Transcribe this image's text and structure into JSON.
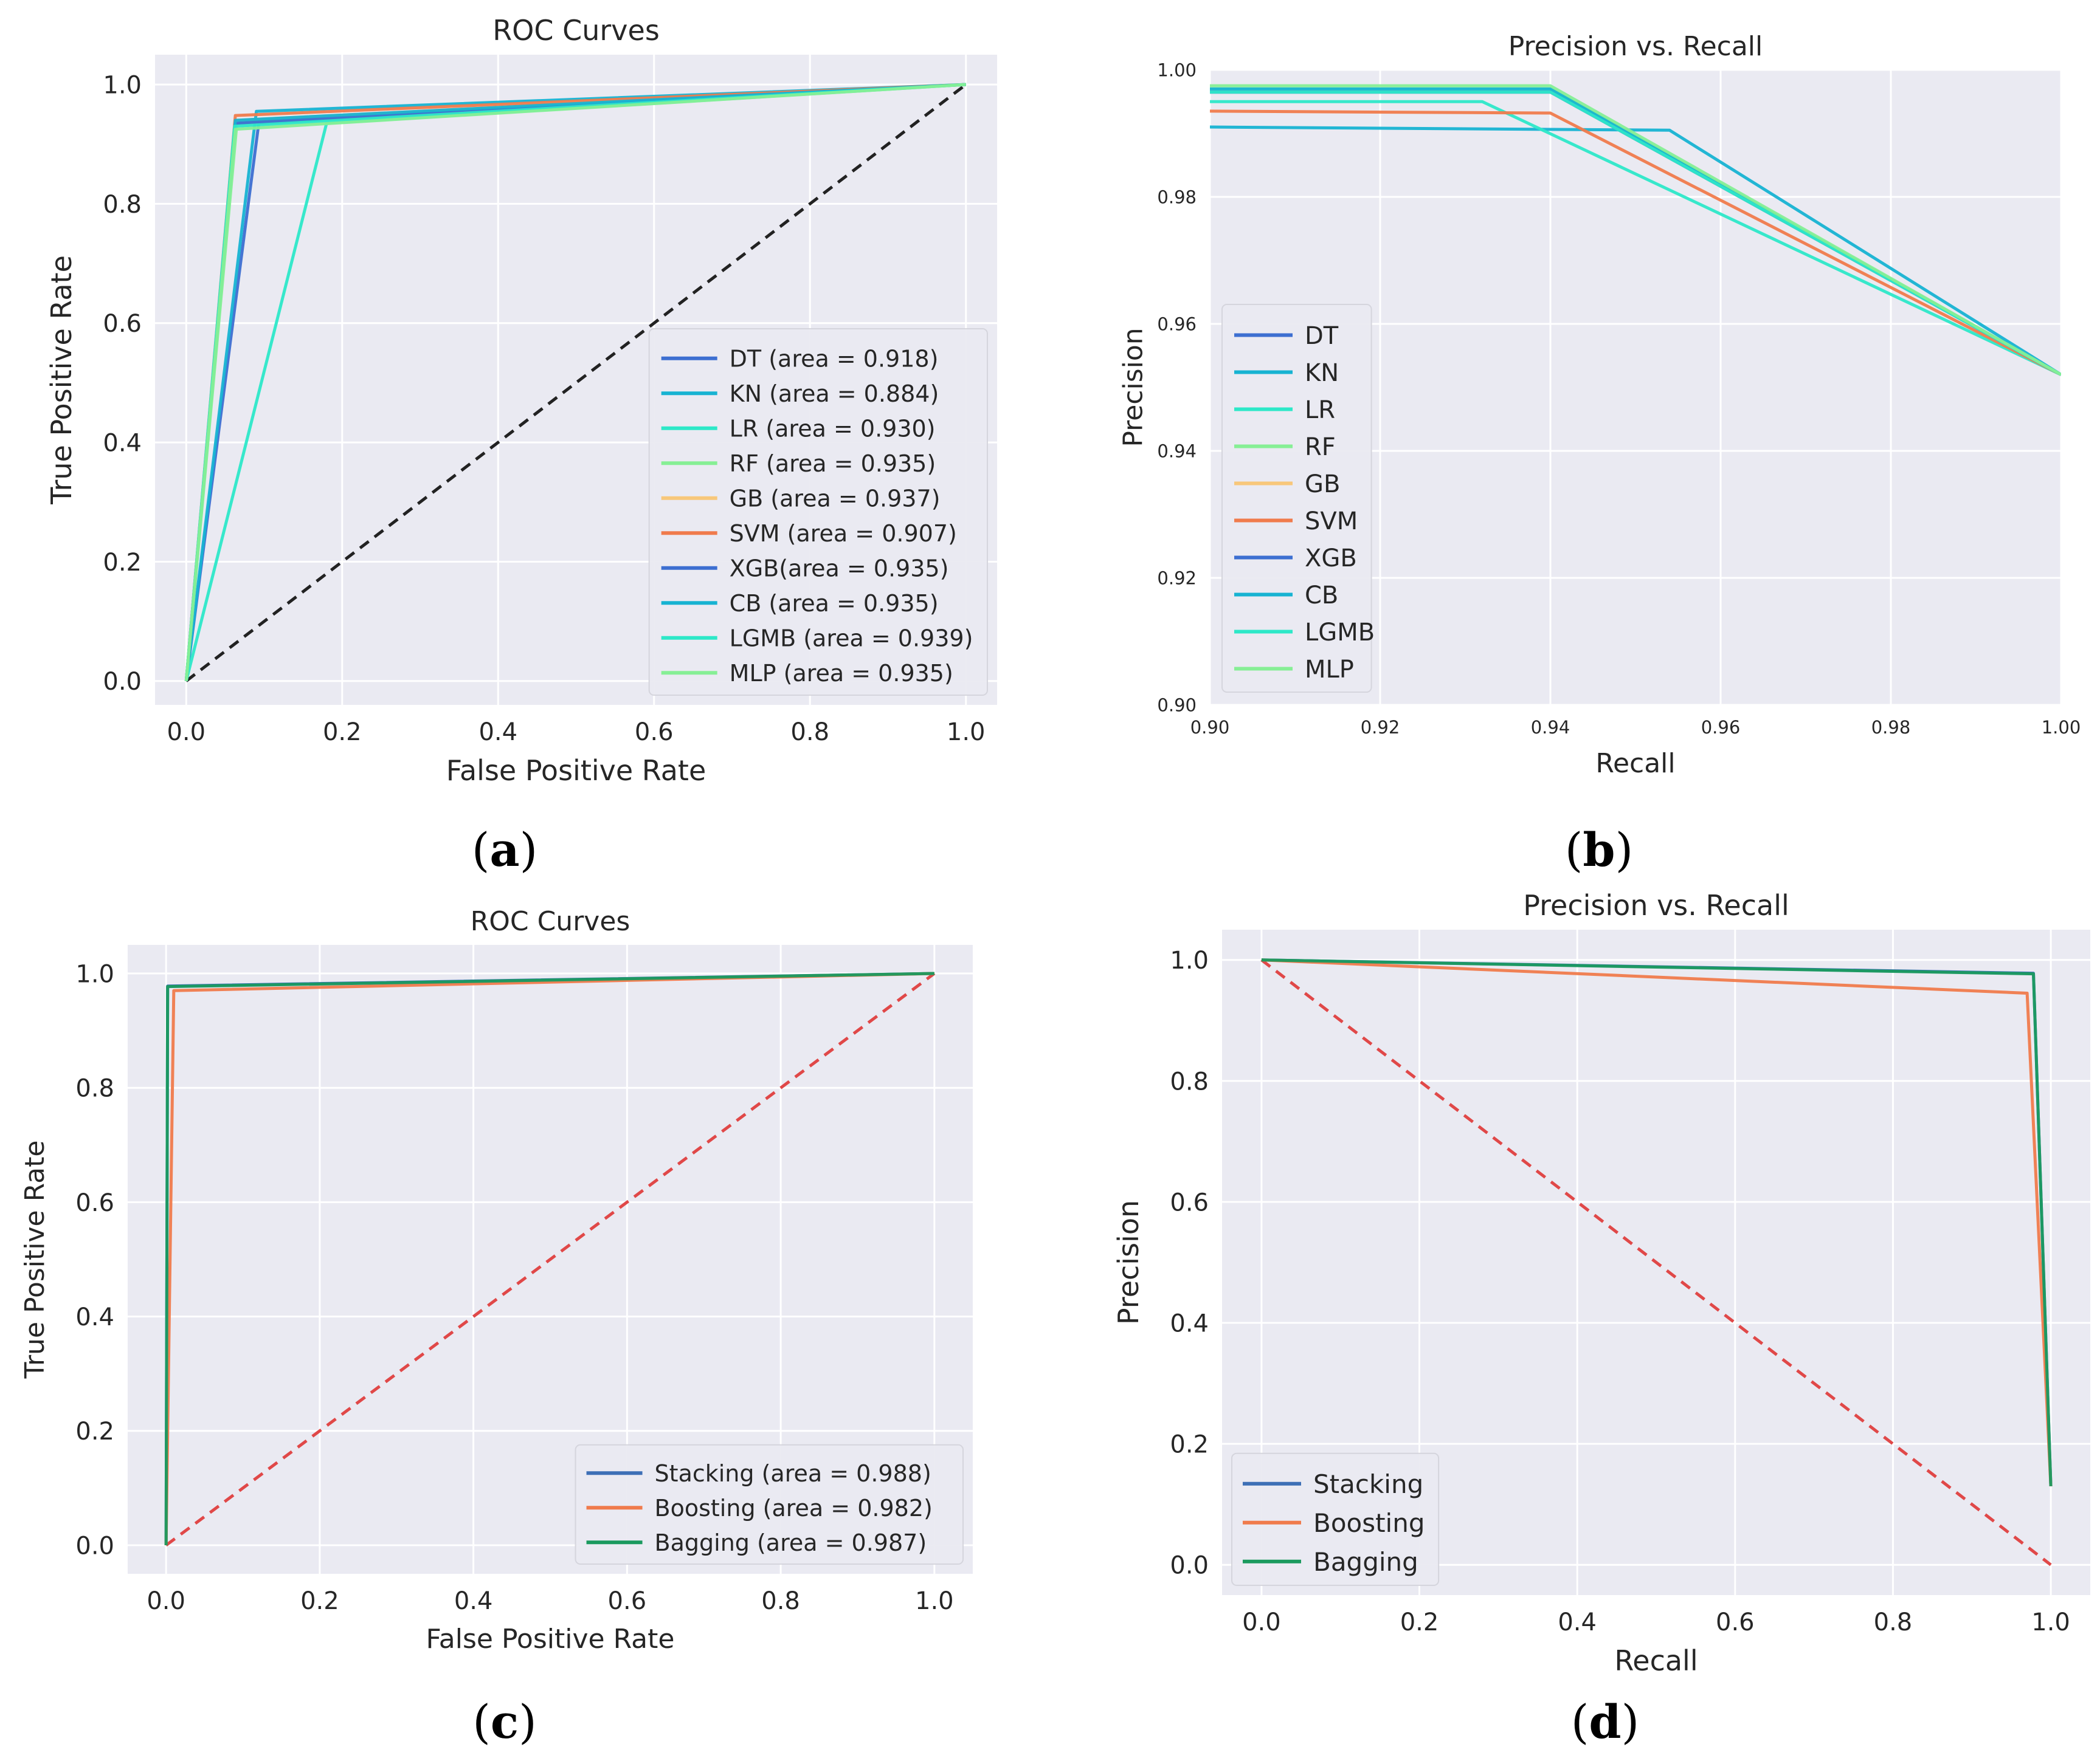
{
  "panel_labels": [
    {
      "open": "(",
      "letter": "a",
      "close": ")"
    },
    {
      "open": "(",
      "letter": "b",
      "close": ")"
    },
    {
      "open": "(",
      "letter": "c",
      "close": ")"
    },
    {
      "open": "(",
      "letter": "d",
      "close": ")"
    }
  ],
  "chart_data": [
    {
      "type": "line",
      "title": "ROC Curves",
      "xlabel": "False Positive Rate",
      "ylabel": "True Positive Rate",
      "xlim": [
        -0.04,
        1.04
      ],
      "ylim": [
        -0.04,
        1.05
      ],
      "xticks": [
        0.0,
        0.2,
        0.4,
        0.6,
        0.8,
        1.0
      ],
      "yticks": [
        0.0,
        0.2,
        0.4,
        0.6,
        0.8,
        1.0
      ],
      "xtick_labels": [
        "0.0",
        "0.2",
        "0.4",
        "0.6",
        "0.8",
        "1.0"
      ],
      "ytick_labels": [
        "0.0",
        "0.2",
        "0.4",
        "0.6",
        "0.8",
        "1.0"
      ],
      "grid": true,
      "legend_position": "lower-right",
      "series": [
        {
          "name": "DT (area = 0.918)",
          "color": "#3d6fd1",
          "x": [
            0,
            0.093,
            1
          ],
          "y": [
            0,
            0.935,
            1
          ]
        },
        {
          "name": "KN (area = 0.884)",
          "color": "#17b3d2",
          "x": [
            0,
            0.09,
            1
          ],
          "y": [
            0,
            0.955,
            1
          ]
        },
        {
          "name": "LR (area = 0.930)",
          "color": "#2de8c8",
          "x": [
            0,
            0.18,
            1
          ],
          "y": [
            0,
            0.935,
            1
          ]
        },
        {
          "name": "RF (area = 0.935)",
          "color": "#86ef95",
          "x": [
            0,
            0.065,
            1
          ],
          "y": [
            0,
            0.935,
            1
          ]
        },
        {
          "name": "GB (area = 0.937)",
          "color": "#f8c77a",
          "x": [
            0,
            0.063,
            1
          ],
          "y": [
            0,
            0.94,
            1
          ]
        },
        {
          "name": "SVM (area = 0.907)",
          "color": "#f07b4c",
          "x": [
            0,
            0.063,
            1
          ],
          "y": [
            0,
            0.948,
            1
          ]
        },
        {
          "name": "XGB(area = 0.935)",
          "color": "#3d6fd1",
          "x": [
            0,
            0.063,
            1
          ],
          "y": [
            0,
            0.935,
            1
          ]
        },
        {
          "name": "CB (area = 0.935)",
          "color": "#17b3d2",
          "x": [
            0,
            0.063,
            1
          ],
          "y": [
            0,
            0.94,
            1
          ]
        },
        {
          "name": "LGMB (area = 0.939)",
          "color": "#2de8c8",
          "x": [
            0,
            0.062,
            1
          ],
          "y": [
            0,
            0.93,
            1
          ]
        },
        {
          "name": "MLP (area = 0.935)",
          "color": "#86ef95",
          "x": [
            0,
            0.063,
            1
          ],
          "y": [
            0,
            0.925,
            1
          ]
        }
      ],
      "reference_line": {
        "x": [
          0,
          1
        ],
        "y": [
          0,
          1
        ],
        "color": "#222222",
        "style": "dashed"
      }
    },
    {
      "type": "line",
      "title": "Precision vs. Recall",
      "xlabel": "Recall",
      "ylabel": "Precision",
      "xlim": [
        0.9,
        1.0
      ],
      "ylim": [
        0.9,
        1.0
      ],
      "xticks": [
        0.9,
        0.92,
        0.94,
        0.96,
        0.98,
        1.0
      ],
      "yticks": [
        0.9,
        0.92,
        0.94,
        0.96,
        0.98,
        1.0
      ],
      "xtick_labels": [
        "0.90",
        "0.92",
        "0.94",
        "0.96",
        "0.98",
        "1.00"
      ],
      "ytick_labels": [
        "0.90",
        "0.92",
        "0.94",
        "0.96",
        "0.98",
        "1.00"
      ],
      "grid": true,
      "legend_position": "center-left",
      "series": [
        {
          "name": "DT",
          "color": "#3d6fd1",
          "x": [
            0.9,
            0.94,
            1.0
          ],
          "y": [
            0.9965,
            0.9965,
            0.952
          ]
        },
        {
          "name": "KN",
          "color": "#17b3d2",
          "x": [
            0.9,
            0.954,
            1.0
          ],
          "y": [
            0.991,
            0.9905,
            0.952
          ]
        },
        {
          "name": "LR",
          "color": "#2de8c8",
          "x": [
            0.9,
            0.932,
            1.0
          ],
          "y": [
            0.995,
            0.995,
            0.952
          ]
        },
        {
          "name": "RF",
          "color": "#86ef95",
          "x": [
            0.9,
            0.94,
            1.0
          ],
          "y": [
            0.997,
            0.997,
            0.952
          ]
        },
        {
          "name": "GB",
          "color": "#f8c77a",
          "x": [
            0.9,
            0.94,
            1.0
          ],
          "y": [
            0.9965,
            0.9965,
            0.952
          ]
        },
        {
          "name": "SVM",
          "color": "#f07b4c",
          "x": [
            0.9,
            0.94,
            1.0
          ],
          "y": [
            0.9935,
            0.9932,
            0.952
          ]
        },
        {
          "name": "XGB",
          "color": "#3d6fd1",
          "x": [
            0.9,
            0.94,
            1.0
          ],
          "y": [
            0.9965,
            0.9965,
            0.952
          ]
        },
        {
          "name": "CB",
          "color": "#17b3d2",
          "x": [
            0.9,
            0.94,
            1.0
          ],
          "y": [
            0.997,
            0.997,
            0.952
          ]
        },
        {
          "name": "LGMB",
          "color": "#2de8c8",
          "x": [
            0.9,
            0.94,
            1.0
          ],
          "y": [
            0.9965,
            0.9965,
            0.952
          ]
        },
        {
          "name": "MLP",
          "color": "#86ef95",
          "x": [
            0.9,
            0.94,
            1.0
          ],
          "y": [
            0.9975,
            0.9975,
            0.952
          ]
        }
      ]
    },
    {
      "type": "line",
      "title": "ROC Curves",
      "xlabel": "False Positive Rate",
      "ylabel": "True Positive Rate",
      "xlim": [
        -0.05,
        1.05
      ],
      "ylim": [
        -0.05,
        1.05
      ],
      "xticks": [
        0.0,
        0.2,
        0.4,
        0.6,
        0.8,
        1.0
      ],
      "yticks": [
        0.0,
        0.2,
        0.4,
        0.6,
        0.8,
        1.0
      ],
      "xtick_labels": [
        "0.0",
        "0.2",
        "0.4",
        "0.6",
        "0.8",
        "1.0"
      ],
      "ytick_labels": [
        "0.0",
        "0.2",
        "0.4",
        "0.6",
        "0.8",
        "1.0"
      ],
      "grid": true,
      "legend_position": "lower-right",
      "series": [
        {
          "name": "Stacking (area = 0.988)",
          "color": "#3d6fb6",
          "x": [
            0,
            0.002,
            1
          ],
          "y": [
            0,
            0.978,
            1
          ]
        },
        {
          "name": "Boosting (area = 0.982)",
          "color": "#f07b4c",
          "x": [
            0,
            0.01,
            1
          ],
          "y": [
            0,
            0.97,
            1
          ]
        },
        {
          "name": "Bagging (area = 0.987)",
          "color": "#1a9a5e",
          "x": [
            0,
            0.002,
            1
          ],
          "y": [
            0,
            0.977,
            1
          ]
        }
      ],
      "reference_line": {
        "x": [
          0,
          1
        ],
        "y": [
          0,
          1
        ],
        "color": "#e04848",
        "style": "dashed"
      }
    },
    {
      "type": "line",
      "title": "Precision vs. Recall",
      "xlabel": "Recall",
      "ylabel": "Precision",
      "xlim": [
        -0.05,
        1.05
      ],
      "ylim": [
        -0.05,
        1.05
      ],
      "xticks": [
        0.0,
        0.2,
        0.4,
        0.6,
        0.8,
        1.0
      ],
      "yticks": [
        0.0,
        0.2,
        0.4,
        0.6,
        0.8,
        1.0
      ],
      "xtick_labels": [
        "0.0",
        "0.2",
        "0.4",
        "0.6",
        "0.8",
        "1.0"
      ],
      "ytick_labels": [
        "0.0",
        "0.2",
        "0.4",
        "0.6",
        "0.8",
        "1.0"
      ],
      "grid": true,
      "legend_position": "lower-left",
      "series": [
        {
          "name": "Stacking",
          "color": "#3d6fb6",
          "x": [
            0,
            0.978,
            1.0
          ],
          "y": [
            1.0,
            0.978,
            0.13
          ]
        },
        {
          "name": "Boosting",
          "color": "#f07b4c",
          "x": [
            0,
            0.97,
            1.0
          ],
          "y": [
            1.0,
            0.945,
            0.13
          ]
        },
        {
          "name": "Bagging",
          "color": "#1a9a5e",
          "x": [
            0,
            0.978,
            1.0
          ],
          "y": [
            1.0,
            0.977,
            0.13
          ]
        }
      ],
      "reference_line": {
        "x": [
          0,
          1
        ],
        "y": [
          1,
          0
        ],
        "color": "#e04848",
        "style": "dashed"
      }
    }
  ]
}
